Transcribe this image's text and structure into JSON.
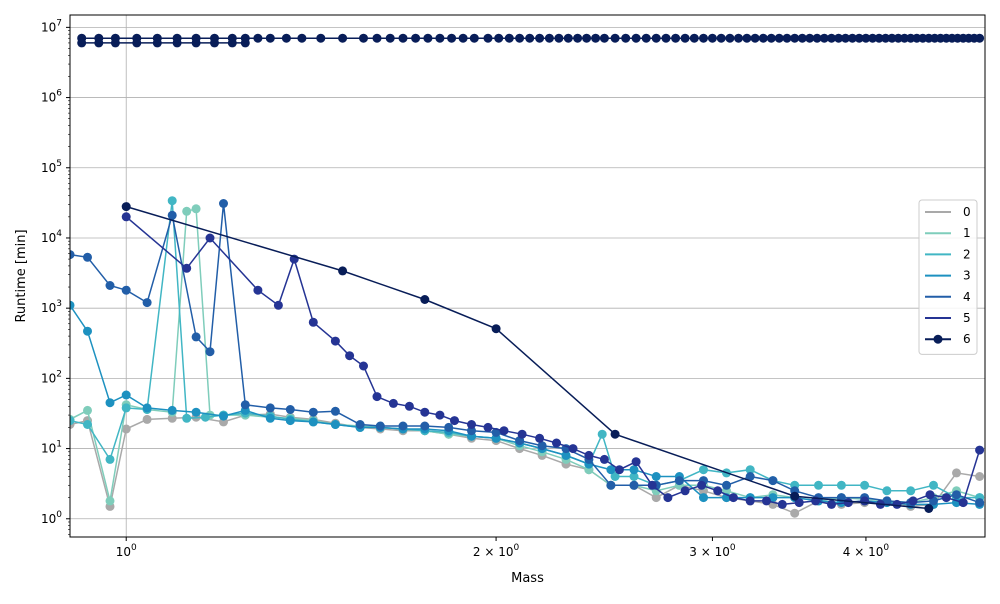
{
  "chart_data": {
    "type": "line",
    "xlabel": "Mass",
    "ylabel": "Runtime [min]",
    "x_scale": "log",
    "y_scale": "log",
    "xlim": [
      0.9,
      5.0
    ],
    "ylim": [
      0.55,
      15000000
    ],
    "grid": true,
    "legend_position": "right",
    "x_ticks": [
      {
        "value": 1,
        "base": "10",
        "exp": "0"
      },
      {
        "value": 2,
        "coef": "2",
        "base": "10",
        "exp": "0"
      },
      {
        "value": 3,
        "coef": "3",
        "base": "10",
        "exp": "0"
      },
      {
        "value": 4,
        "coef": "4",
        "base": "10",
        "exp": "0"
      }
    ],
    "y_ticks": [
      {
        "value": 1,
        "base": "10",
        "exp": "0"
      },
      {
        "value": 10,
        "base": "10",
        "exp": "1"
      },
      {
        "value": 100,
        "base": "10",
        "exp": "2"
      },
      {
        "value": 1000,
        "base": "10",
        "exp": "3"
      },
      {
        "value": 10000,
        "base": "10",
        "exp": "4"
      },
      {
        "value": 100000,
        "base": "10",
        "exp": "5"
      },
      {
        "value": 1000000,
        "base": "10",
        "exp": "6"
      },
      {
        "value": 10000000,
        "base": "10",
        "exp": "7"
      }
    ],
    "series": [
      {
        "name": "0",
        "color": "#a9a9a9",
        "x": [
          0.9,
          0.93,
          0.97,
          1.0,
          1.04,
          1.09,
          1.14,
          1.2,
          1.25,
          1.31,
          1.36,
          1.42,
          1.48,
          1.55,
          1.61,
          1.68,
          1.75,
          1.83,
          1.91,
          2.0,
          2.09,
          2.18,
          2.28,
          2.38,
          2.48,
          2.59,
          2.7,
          2.82,
          2.95,
          3.08,
          3.22,
          3.36,
          3.5,
          3.66,
          3.82,
          3.99,
          4.16,
          4.35,
          4.54,
          4.74,
          4.95
        ],
        "y": [
          22,
          25,
          1.5,
          19,
          26,
          27,
          28,
          24,
          30,
          31,
          28,
          26,
          23,
          20,
          19,
          18,
          18,
          16,
          14,
          13,
          10,
          8,
          6,
          5,
          3,
          3,
          2,
          3,
          2.5,
          2,
          1.8,
          1.6,
          1.2,
          1.8,
          1.6,
          1.7,
          1.8,
          1.5,
          1.6,
          4.5,
          4
        ]
      },
      {
        "name": "1",
        "color": "#7fcdbb",
        "x": [
          0.9,
          0.93,
          0.97,
          1.0,
          1.04,
          1.09,
          1.12,
          1.14,
          1.17,
          1.2,
          1.25,
          1.31,
          1.36,
          1.42,
          1.48,
          1.55,
          1.61,
          1.68,
          1.75,
          1.83,
          1.91,
          2.0,
          2.09,
          2.18,
          2.28,
          2.38,
          2.48,
          2.59,
          2.7,
          2.82,
          2.95,
          3.08,
          3.22,
          3.36,
          3.5,
          3.66,
          3.82,
          3.99,
          4.16,
          4.35,
          4.54,
          4.74,
          4.95
        ],
        "y": [
          26,
          35,
          1.8,
          42,
          36,
          33,
          24000,
          26000,
          30,
          30,
          30,
          28,
          27,
          25,
          22,
          21,
          20,
          19,
          18,
          16,
          15,
          14,
          11,
          9,
          7,
          5,
          3,
          3,
          2.5,
          3,
          3,
          2.5,
          2,
          2.2,
          2,
          1.8,
          2,
          1.9,
          1.8,
          1.7,
          2,
          2.5,
          2
        ]
      },
      {
        "name": "2",
        "color": "#41b6c4",
        "x": [
          0.9,
          0.93,
          0.97,
          1.0,
          1.04,
          1.09,
          1.12,
          1.16,
          1.2,
          1.25,
          1.31,
          1.36,
          1.42,
          1.48,
          1.55,
          1.61,
          1.68,
          1.75,
          1.83,
          1.91,
          2.0,
          2.09,
          2.18,
          2.28,
          2.38,
          2.44,
          2.5,
          2.59,
          2.7,
          2.82,
          2.95,
          3.08,
          3.22,
          3.36,
          3.5,
          3.66,
          3.82,
          3.99,
          4.16,
          4.35,
          4.54,
          4.74,
          4.95
        ],
        "y": [
          25,
          22,
          7,
          38,
          36,
          34000,
          27,
          28,
          30,
          32,
          29,
          26,
          24,
          22,
          20,
          20,
          19,
          18,
          17,
          15,
          14,
          12,
          10,
          8,
          6,
          16,
          4,
          4,
          3,
          3.5,
          5,
          4.5,
          5,
          3.5,
          3,
          3,
          3,
          3,
          2.5,
          2.5,
          3,
          2,
          2
        ]
      },
      {
        "name": "3",
        "color": "#1d91c0",
        "x": [
          0.9,
          0.93,
          0.97,
          1.0,
          1.04,
          1.09,
          1.14,
          1.2,
          1.25,
          1.31,
          1.36,
          1.42,
          1.48,
          1.55,
          1.61,
          1.68,
          1.75,
          1.83,
          1.91,
          2.0,
          2.09,
          2.18,
          2.28,
          2.38,
          2.48,
          2.59,
          2.7,
          2.82,
          2.95,
          3.08,
          3.22,
          3.36,
          3.5,
          3.66,
          3.82,
          3.99,
          4.16,
          4.35,
          4.54,
          4.74,
          4.95
        ],
        "y": [
          1100,
          470,
          45,
          58,
          38,
          35,
          33,
          29,
          35,
          27,
          25,
          24,
          22,
          20,
          20,
          19,
          19,
          18,
          15,
          14,
          12,
          10,
          8,
          6,
          5,
          5,
          4,
          4,
          2,
          2,
          2,
          2,
          2,
          1.8,
          1.7,
          1.8,
          1.7,
          1.6,
          1.6,
          1.7,
          1.6
        ]
      },
      {
        "name": "4",
        "color": "#225ea8",
        "x": [
          0.9,
          0.93,
          0.97,
          1.0,
          1.04,
          1.09,
          1.14,
          1.17,
          1.2,
          1.25,
          1.31,
          1.36,
          1.42,
          1.48,
          1.55,
          1.61,
          1.68,
          1.75,
          1.83,
          1.91,
          2.0,
          2.09,
          2.18,
          2.28,
          2.38,
          2.48,
          2.59,
          2.7,
          2.82,
          2.95,
          3.08,
          3.22,
          3.36,
          3.5,
          3.66,
          3.82,
          3.99,
          4.16,
          4.35,
          4.54,
          4.74,
          4.95
        ],
        "y": [
          5800,
          5300,
          2100,
          1800,
          1200,
          21000,
          390,
          240,
          31000,
          42,
          38,
          36,
          33,
          34,
          22,
          21,
          21,
          21,
          20,
          18,
          17,
          13,
          11,
          10,
          7,
          3,
          3,
          3,
          3.5,
          3.5,
          3,
          4,
          3.5,
          2.5,
          2,
          2,
          2,
          1.8,
          1.7,
          1.8,
          2.2,
          1.7
        ]
      },
      {
        "name": "5",
        "color": "#253494",
        "x": [
          1.0,
          1.12,
          1.17,
          1.28,
          1.33,
          1.37,
          1.42,
          1.48,
          1.52,
          1.56,
          1.6,
          1.65,
          1.7,
          1.75,
          1.8,
          1.85,
          1.91,
          1.97,
          2.03,
          2.1,
          2.17,
          2.24,
          2.31,
          2.38,
          2.45,
          2.52,
          2.6,
          2.68,
          2.76,
          2.85,
          2.94,
          3.03,
          3.12,
          3.22,
          3.32,
          3.42,
          3.53,
          3.64,
          3.75,
          3.87,
          3.99,
          4.11,
          4.24,
          4.37,
          4.51,
          4.65,
          4.8,
          4.95
        ],
        "y": [
          20000,
          3700,
          10000,
          1800,
          1100,
          5000,
          630,
          340,
          210,
          150,
          55,
          44,
          40,
          33,
          30,
          25,
          22,
          20,
          18,
          16,
          14,
          12,
          10,
          8,
          7,
          5,
          6.5,
          3,
          2,
          2.5,
          3,
          2.5,
          2,
          1.8,
          1.8,
          1.6,
          1.7,
          1.8,
          1.6,
          1.7,
          1.8,
          1.6,
          1.6,
          1.8,
          2.2,
          2,
          1.7,
          9.5
        ]
      },
      {
        "name": "6",
        "color": "#081d58",
        "x": [
          1.0,
          1.5,
          1.75,
          2.0,
          2.5,
          3.5,
          4.5
        ],
        "y": [
          28000,
          3400,
          1330,
          510,
          16,
          2.1,
          1.4
        ]
      },
      {
        "name": "",
        "color": "#081d58",
        "x": [
          0.92,
          0.95,
          0.98,
          1.02,
          1.06,
          1.1,
          1.14,
          1.18,
          1.22,
          1.25,
          1.28,
          1.31,
          1.35,
          1.39,
          1.44,
          1.5,
          1.56,
          1.6,
          1.64,
          1.68,
          1.72,
          1.76,
          1.8,
          1.84,
          1.88,
          1.92,
          1.97,
          2.01,
          2.05,
          2.09,
          2.13,
          2.17,
          2.21,
          2.25,
          2.29,
          2.33,
          2.37,
          2.41,
          2.45,
          2.5,
          2.55,
          2.6,
          2.65,
          2.7,
          2.75,
          2.8,
          2.85,
          2.9,
          2.95,
          3.0,
          3.05,
          3.1,
          3.15,
          3.2,
          3.25,
          3.3,
          3.35,
          3.4,
          3.45,
          3.5,
          3.55,
          3.6,
          3.65,
          3.7,
          3.75,
          3.8,
          3.85,
          3.9,
          3.95,
          4.0,
          4.05,
          4.1,
          4.15,
          4.2,
          4.25,
          4.3,
          4.35,
          4.4,
          4.45,
          4.5,
          4.55,
          4.6,
          4.65,
          4.7,
          4.75,
          4.8,
          4.85,
          4.9,
          4.95
        ],
        "y": [
          7000000,
          7000000,
          7000000,
          7000000,
          7000000,
          7000000,
          7000000,
          7000000,
          7000000,
          7000000,
          7000000,
          7000000,
          7000000,
          7000000,
          7000000,
          7000000,
          7000000,
          7000000,
          7000000,
          7000000,
          7000000,
          7000000,
          7000000,
          7000000,
          7000000,
          7000000,
          7000000,
          7000000,
          7000000,
          7000000,
          7000000,
          7000000,
          7000000,
          7000000,
          7000000,
          7000000,
          7000000,
          7000000,
          7000000,
          7000000,
          7000000,
          7000000,
          7000000,
          7000000,
          7000000,
          7000000,
          7000000,
          7000000,
          7000000,
          7000000,
          7000000,
          7000000,
          7000000,
          7000000,
          7000000,
          7000000,
          7000000,
          7000000,
          7000000,
          7000000,
          7000000,
          7000000,
          7000000,
          7000000,
          7000000,
          7000000,
          7000000,
          7000000,
          7000000,
          7000000,
          7000000,
          7000000,
          7000000,
          7000000,
          7000000,
          7000000,
          7000000,
          7000000,
          7000000,
          7000000,
          7000000,
          7000000,
          7000000,
          7000000,
          7000000,
          7000000,
          7000000,
          7000000,
          7000000
        ]
      },
      {
        "name": "",
        "color": "#081d58",
        "x": [
          0.92,
          0.95,
          0.98,
          1.02,
          1.06,
          1.1,
          1.14,
          1.18,
          1.22,
          1.25
        ],
        "y": [
          6000000,
          6000000,
          6000000,
          6000000,
          6000000,
          6000000,
          6000000,
          6000000,
          6000000,
          6000000
        ]
      }
    ]
  }
}
